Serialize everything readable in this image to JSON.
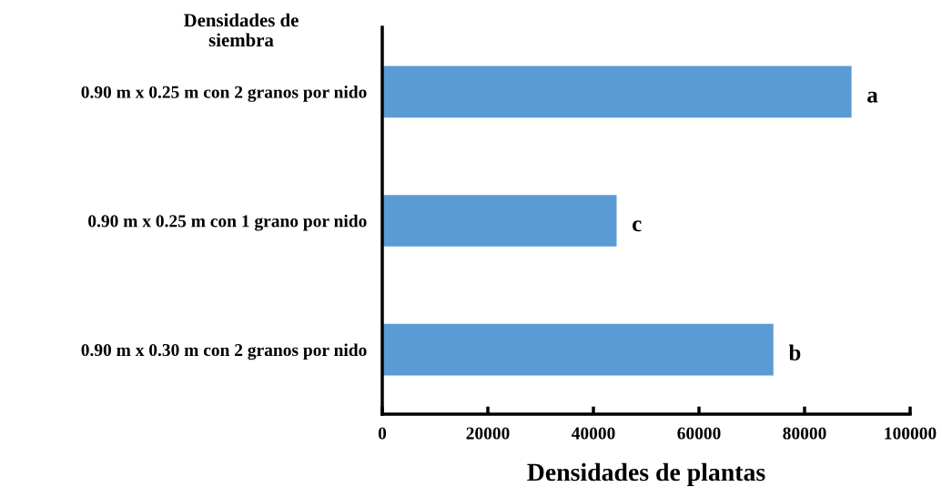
{
  "chart_data": {
    "type": "bar",
    "orientation": "horizontal",
    "ylabel": "Densidades de\nsiembra",
    "xlabel": "Densidades de plantas",
    "categories": [
      "0.90 m x 0.25 m con 2 granos por nido",
      "0.90 m x 0.25 m con 1 grano por nido",
      "0.90 m x 0.30 m con 2 granos por nido"
    ],
    "values": [
      88900,
      44400,
      74100
    ],
    "color": "#5b9bd5",
    "xlim": [
      0,
      100000
    ],
    "xticks": [
      0,
      20000,
      40000,
      60000,
      80000,
      100000
    ],
    "grid": false,
    "legend": false,
    "annotations": [
      {
        "text": "a",
        "x": 88900,
        "y": "0.90 m x 0.25 m con 2 granos por nido"
      },
      {
        "text": "c",
        "x": 44400,
        "y": "0.90 m x 0.25 m con 1 grano por nido"
      },
      {
        "text": "b",
        "x": 74100,
        "y": "0.90 m x 0.30 m con 2 granos por nido"
      }
    ]
  }
}
